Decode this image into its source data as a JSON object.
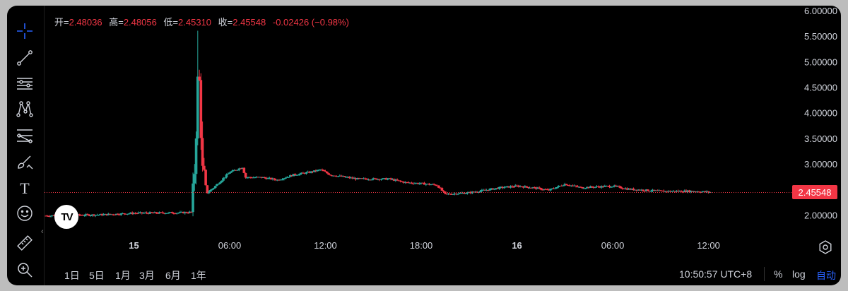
{
  "legend": {
    "open_label": "开=",
    "open": "2.48036",
    "high_label": "高=",
    "high": "2.48056",
    "low_label": "低=",
    "low": "2.45310",
    "close_label": "收=",
    "close": "2.45548",
    "change": "-0.02426 (−0.98%)"
  },
  "toolbar": {
    "tools": [
      "crosshair-icon",
      "trend-line-icon",
      "horizontal-lines-icon",
      "pattern-icon",
      "fib-icon",
      "brush-icon",
      "text-icon",
      "emoji-icon",
      "ruler-icon",
      "zoom-in-icon"
    ],
    "text_tool_glyph": "T"
  },
  "logo": {
    "text": "TV"
  },
  "current_price": "2.45548",
  "bottom_bar": {
    "ranges": [
      "1日",
      "5日",
      "1月",
      "3月",
      "6月",
      "1年"
    ],
    "clock": "10:50:57 UTC+8",
    "percent": "%",
    "log": "log",
    "auto": "自动"
  },
  "colors": {
    "up": "#26a69a",
    "down": "#f23645",
    "accent": "#2962ff",
    "background": "#000000"
  },
  "chart_data": {
    "type": "candlestick",
    "y_ticks": [
      "6.00000",
      "5.50000",
      "5.00000",
      "4.50000",
      "4.00000",
      "3.50000",
      "3.00000",
      "2.00000"
    ],
    "ylim": [
      1.55,
      6.0
    ],
    "x_ticks": [
      {
        "label": "15",
        "bold": true,
        "t": 0
      },
      {
        "label": "06:00",
        "bold": false,
        "t": 6
      },
      {
        "label": "12:00",
        "bold": false,
        "t": 12
      },
      {
        "label": "18:00",
        "bold": false,
        "t": 18
      },
      {
        "label": "16",
        "bold": true,
        "t": 24
      },
      {
        "label": "06:00",
        "bold": false,
        "t": 30
      },
      {
        "label": "12:00",
        "bold": false,
        "t": 36
      }
    ],
    "xlim": [
      -5.6,
      40.8
    ],
    "last_price": 2.45548,
    "anchors": [
      [
        -5.5,
        2.0
      ],
      [
        -2.0,
        2.02
      ],
      [
        0,
        2.05
      ],
      [
        3.0,
        2.06
      ],
      [
        3.6,
        2.07
      ],
      [
        3.7,
        2.4
      ],
      [
        3.8,
        2.9
      ],
      [
        3.9,
        3.7
      ],
      [
        4.0,
        4.6
      ],
      [
        4.1,
        4.6
      ],
      [
        4.2,
        3.7
      ],
      [
        4.3,
        2.85
      ],
      [
        4.6,
        2.45
      ],
      [
        5.0,
        2.55
      ],
      [
        6.0,
        2.85
      ],
      [
        6.8,
        2.95
      ],
      [
        7.0,
        2.75
      ],
      [
        8.0,
        2.75
      ],
      [
        9.0,
        2.7
      ],
      [
        10.0,
        2.8
      ],
      [
        11.0,
        2.85
      ],
      [
        11.7,
        2.9
      ],
      [
        12.3,
        2.8
      ],
      [
        14.0,
        2.72
      ],
      [
        16.0,
        2.72
      ],
      [
        17.0,
        2.65
      ],
      [
        18.0,
        2.63
      ],
      [
        19.0,
        2.6
      ],
      [
        19.5,
        2.42
      ],
      [
        21.0,
        2.45
      ],
      [
        23.0,
        2.55
      ],
      [
        24.0,
        2.58
      ],
      [
        25.0,
        2.55
      ],
      [
        26.0,
        2.5
      ],
      [
        27.0,
        2.62
      ],
      [
        28.0,
        2.55
      ],
      [
        30.0,
        2.58
      ],
      [
        31.0,
        2.52
      ],
      [
        33.0,
        2.48
      ],
      [
        35.0,
        2.48
      ],
      [
        36.2,
        2.46
      ]
    ]
  }
}
